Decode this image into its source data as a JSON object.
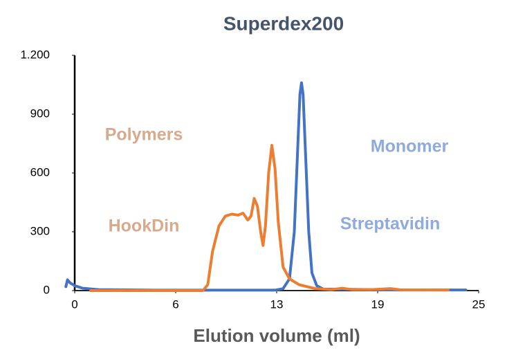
{
  "chart_data": {
    "type": "line",
    "title": "Superdex200",
    "x_label": "Elution volume (ml)",
    "xlim": [
      0,
      25.2
    ],
    "xticks": [
      0,
      {
        "value": 6.3,
        "label": "6"
      },
      {
        "value": 12.6,
        "label": "13"
      },
      {
        "value": 18.9,
        "label": "19"
      },
      {
        "value": 25.2,
        "label": "25"
      }
    ],
    "ylim": [
      0,
      1200
    ],
    "yticks": [
      0,
      300,
      600,
      900,
      {
        "value": 1200,
        "label": "1.200"
      }
    ],
    "series": [
      {
        "color": "#4472c4",
        "x": [
          -0.55,
          -0.45,
          -0.3,
          0,
          0.5,
          1.5,
          5,
          12.5,
          13.0,
          13.4,
          13.7,
          13.9,
          14.05,
          14.15,
          14.25,
          14.4,
          14.6,
          14.8,
          15.1,
          15.5,
          20,
          24.4
        ],
        "values": [
          20,
          55,
          40,
          25,
          12,
          5,
          2,
          2,
          10,
          60,
          300,
          700,
          1000,
          1060,
          1000,
          700,
          300,
          90,
          25,
          8,
          3,
          3
        ]
      },
      {
        "color": "#ed7d31",
        "x": [
          1.0,
          8.0,
          8.3,
          8.6,
          9.0,
          9.4,
          9.8,
          10.2,
          10.5,
          10.8,
          11.0,
          11.2,
          11.4,
          11.6,
          11.75,
          11.9,
          12.1,
          12.3,
          12.5,
          12.7,
          13.0,
          13.4,
          14.0,
          15.0,
          16.0,
          16.7,
          17.3,
          18.5,
          19.7,
          20.3,
          23.3
        ],
        "values": [
          0,
          0,
          30,
          200,
          330,
          380,
          390,
          385,
          395,
          360,
          380,
          470,
          430,
          300,
          230,
          330,
          600,
          741,
          620,
          350,
          120,
          60,
          30,
          10,
          5,
          12,
          5,
          5,
          10,
          4,
          3
        ]
      }
    ],
    "annotations": [
      {
        "text": "Polymers",
        "color": "#d8a98b"
      },
      {
        "text": "HookDin",
        "color": "#d8a98b"
      },
      {
        "text": "Monomer",
        "color": "#8faadc"
      },
      {
        "text": "Streptavidin",
        "color": "#8faadc"
      }
    ]
  }
}
